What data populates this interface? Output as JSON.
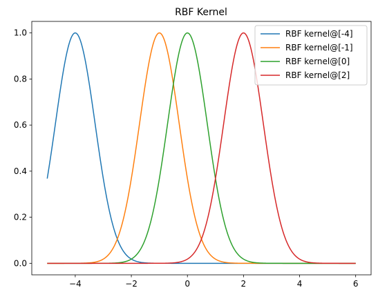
{
  "chart_data": {
    "type": "line",
    "title": "RBF Kernel",
    "xlabel": "",
    "ylabel": "",
    "xlim": [
      -5.55,
      6.55
    ],
    "ylim": [
      -0.05,
      1.05
    ],
    "x_range": [
      -5,
      6
    ],
    "gamma": 1.0,
    "x_ticks": [
      -4,
      -2,
      0,
      2,
      4,
      6
    ],
    "x_tick_labels": [
      "−4",
      "−2",
      "0",
      "2",
      "4",
      "6"
    ],
    "y_ticks": [
      0.0,
      0.2,
      0.4,
      0.6,
      0.8,
      1.0
    ],
    "y_tick_labels": [
      "0.0",
      "0.2",
      "0.4",
      "0.6",
      "0.8",
      "1.0"
    ],
    "grid": false,
    "legend_position": "top-right",
    "series": [
      {
        "name": "RBF kernel@[-4]",
        "center": -4,
        "color": "#1f77b4"
      },
      {
        "name": "RBF kernel@[-1]",
        "center": -1,
        "color": "#ff7f0e"
      },
      {
        "name": "RBF kernel@[0]",
        "center": 0,
        "color": "#2ca02c"
      },
      {
        "name": "RBF kernel@[2]",
        "center": 2,
        "color": "#d62728"
      }
    ]
  }
}
